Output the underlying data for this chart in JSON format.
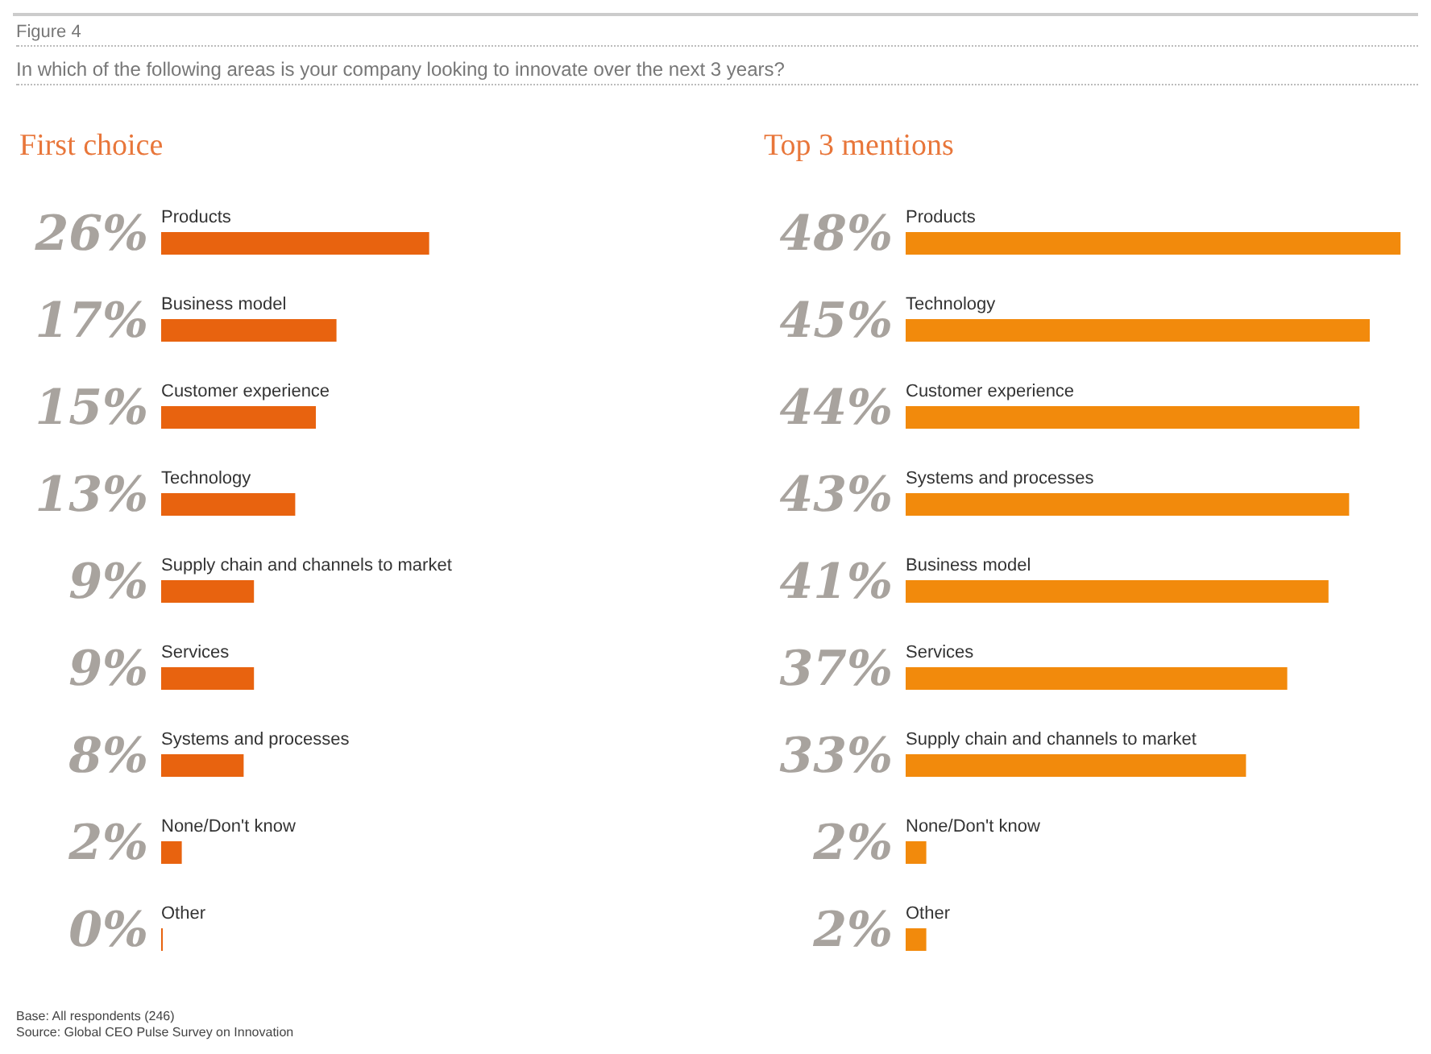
{
  "chart_data": [
    {
      "type": "bar",
      "orientation": "horizontal",
      "title": "First choice",
      "annotations": [
        "Figure 4",
        "In which of the following areas is your company looking to innovate over the next 3 years?",
        "Base: All respondents (246)",
        "Source: Global CEO Pulse Survey on Innovation"
      ],
      "categories": [
        "Products",
        "Business model",
        "Customer experience",
        "Technology",
        "Supply chain and channels to market",
        "Services",
        "Systems and processes",
        "None/Don't know",
        "Other"
      ],
      "values": [
        26,
        17,
        15,
        13,
        9,
        9,
        8,
        2,
        0
      ],
      "value_labels": [
        "26%",
        "17%",
        "15%",
        "13%",
        "9%",
        "9%",
        "8%",
        "2%",
        "0%"
      ],
      "color": "#e8630f"
    },
    {
      "type": "bar",
      "orientation": "horizontal",
      "title": "Top 3 mentions",
      "categories": [
        "Products",
        "Technology",
        "Customer experience",
        "Systems and processes",
        "Business model",
        "Services",
        "Supply chain and channels to market",
        "None/Don't know",
        "Other"
      ],
      "values": [
        48,
        45,
        44,
        43,
        41,
        37,
        33,
        2,
        2
      ],
      "value_labels": [
        "48%",
        "45%",
        "44%",
        "43%",
        "41%",
        "37%",
        "33%",
        "2%",
        "2%"
      ],
      "color": "#f28a0c"
    }
  ]
}
